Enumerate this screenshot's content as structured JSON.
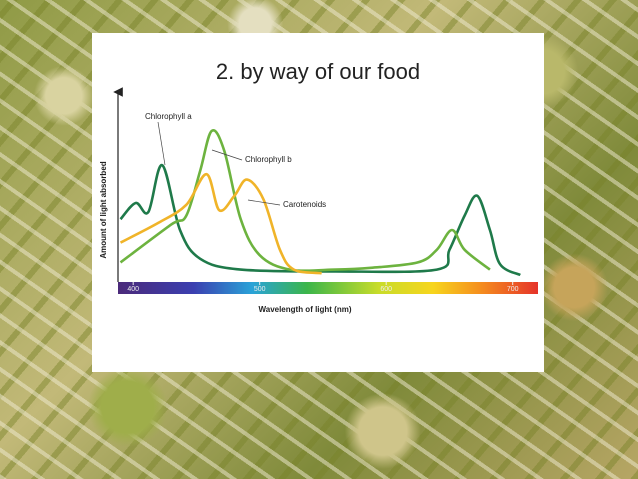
{
  "chart_data": {
    "type": "line",
    "title": "2. by way of our food",
    "xlabel": "Wavelength of light (nm)",
    "ylabel": "Amount of light absorbed",
    "xlim": [
      388,
      720
    ],
    "ylim": [
      0,
      1
    ],
    "xticks": [
      400,
      500,
      600,
      700
    ],
    "series": [
      {
        "name": "Chlorophyll a",
        "color": "#1f7a4a",
        "x": [
          390,
          402,
          412,
          423,
          437,
          453,
          485,
          560,
          640,
          650,
          662,
          672,
          682,
          690,
          706
        ],
        "values": [
          0.31,
          0.4,
          0.35,
          0.61,
          0.25,
          0.09,
          0.03,
          0.02,
          0.03,
          0.14,
          0.33,
          0.44,
          0.25,
          0.06,
          0.0
        ]
      },
      {
        "name": "Chlorophyll b",
        "color": "#6db33f",
        "x": [
          390,
          430,
          442,
          453,
          462,
          472,
          485,
          500,
          524,
          560,
          588,
          625,
          640,
          652,
          662,
          682
        ],
        "values": [
          0.07,
          0.28,
          0.33,
          0.58,
          0.8,
          0.69,
          0.31,
          0.11,
          0.03,
          0.03,
          0.04,
          0.07,
          0.14,
          0.25,
          0.14,
          0.03
        ]
      },
      {
        "name": "Carotenoids",
        "color": "#f0b429",
        "x": [
          390,
          420,
          442,
          458,
          468,
          480,
          490,
          503,
          516,
          527,
          549
        ],
        "values": [
          0.18,
          0.29,
          0.39,
          0.56,
          0.36,
          0.44,
          0.53,
          0.42,
          0.14,
          0.03,
          0.01
        ]
      }
    ]
  }
}
